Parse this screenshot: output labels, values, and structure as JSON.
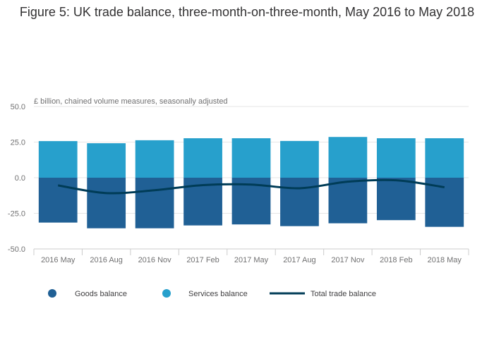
{
  "chart_data": {
    "type": "bar",
    "title": "Figure 5: UK trade balance, three-month-on-three-month, May 2016 to May 2018",
    "subtitle": "£ billion, chained volume measures, seasonally adjusted",
    "categories": [
      "2016 May",
      "2016 Aug",
      "2016 Nov",
      "2017 Feb",
      "2017 May",
      "2017 Aug",
      "2017 Nov",
      "2018 Feb",
      "2018 May"
    ],
    "stacked": true,
    "ylim": [
      -50,
      50
    ],
    "yticks": [
      "50.0",
      "25.0",
      "0.0",
      "-25.0",
      "-50.0"
    ],
    "grid": true,
    "legend_position": "bottom",
    "series": [
      {
        "name": "Goods balance",
        "type": "bar",
        "color": "#206095",
        "values": [
          -31.5,
          -35.5,
          -35.5,
          -33.5,
          -32.8,
          -34.0,
          -32.0,
          -29.8,
          -34.5
        ]
      },
      {
        "name": "Services balance",
        "type": "bar",
        "color": "#27a0cc",
        "values": [
          25.7,
          24.2,
          26.3,
          27.7,
          27.7,
          25.8,
          28.6,
          27.7,
          27.7
        ]
      },
      {
        "name": "Total trade balance",
        "type": "line",
        "color": "#003c57",
        "values": [
          -5.4,
          -10.8,
          -8.8,
          -5.2,
          -4.8,
          -7.4,
          -2.8,
          -1.8,
          -6.7
        ]
      }
    ]
  }
}
